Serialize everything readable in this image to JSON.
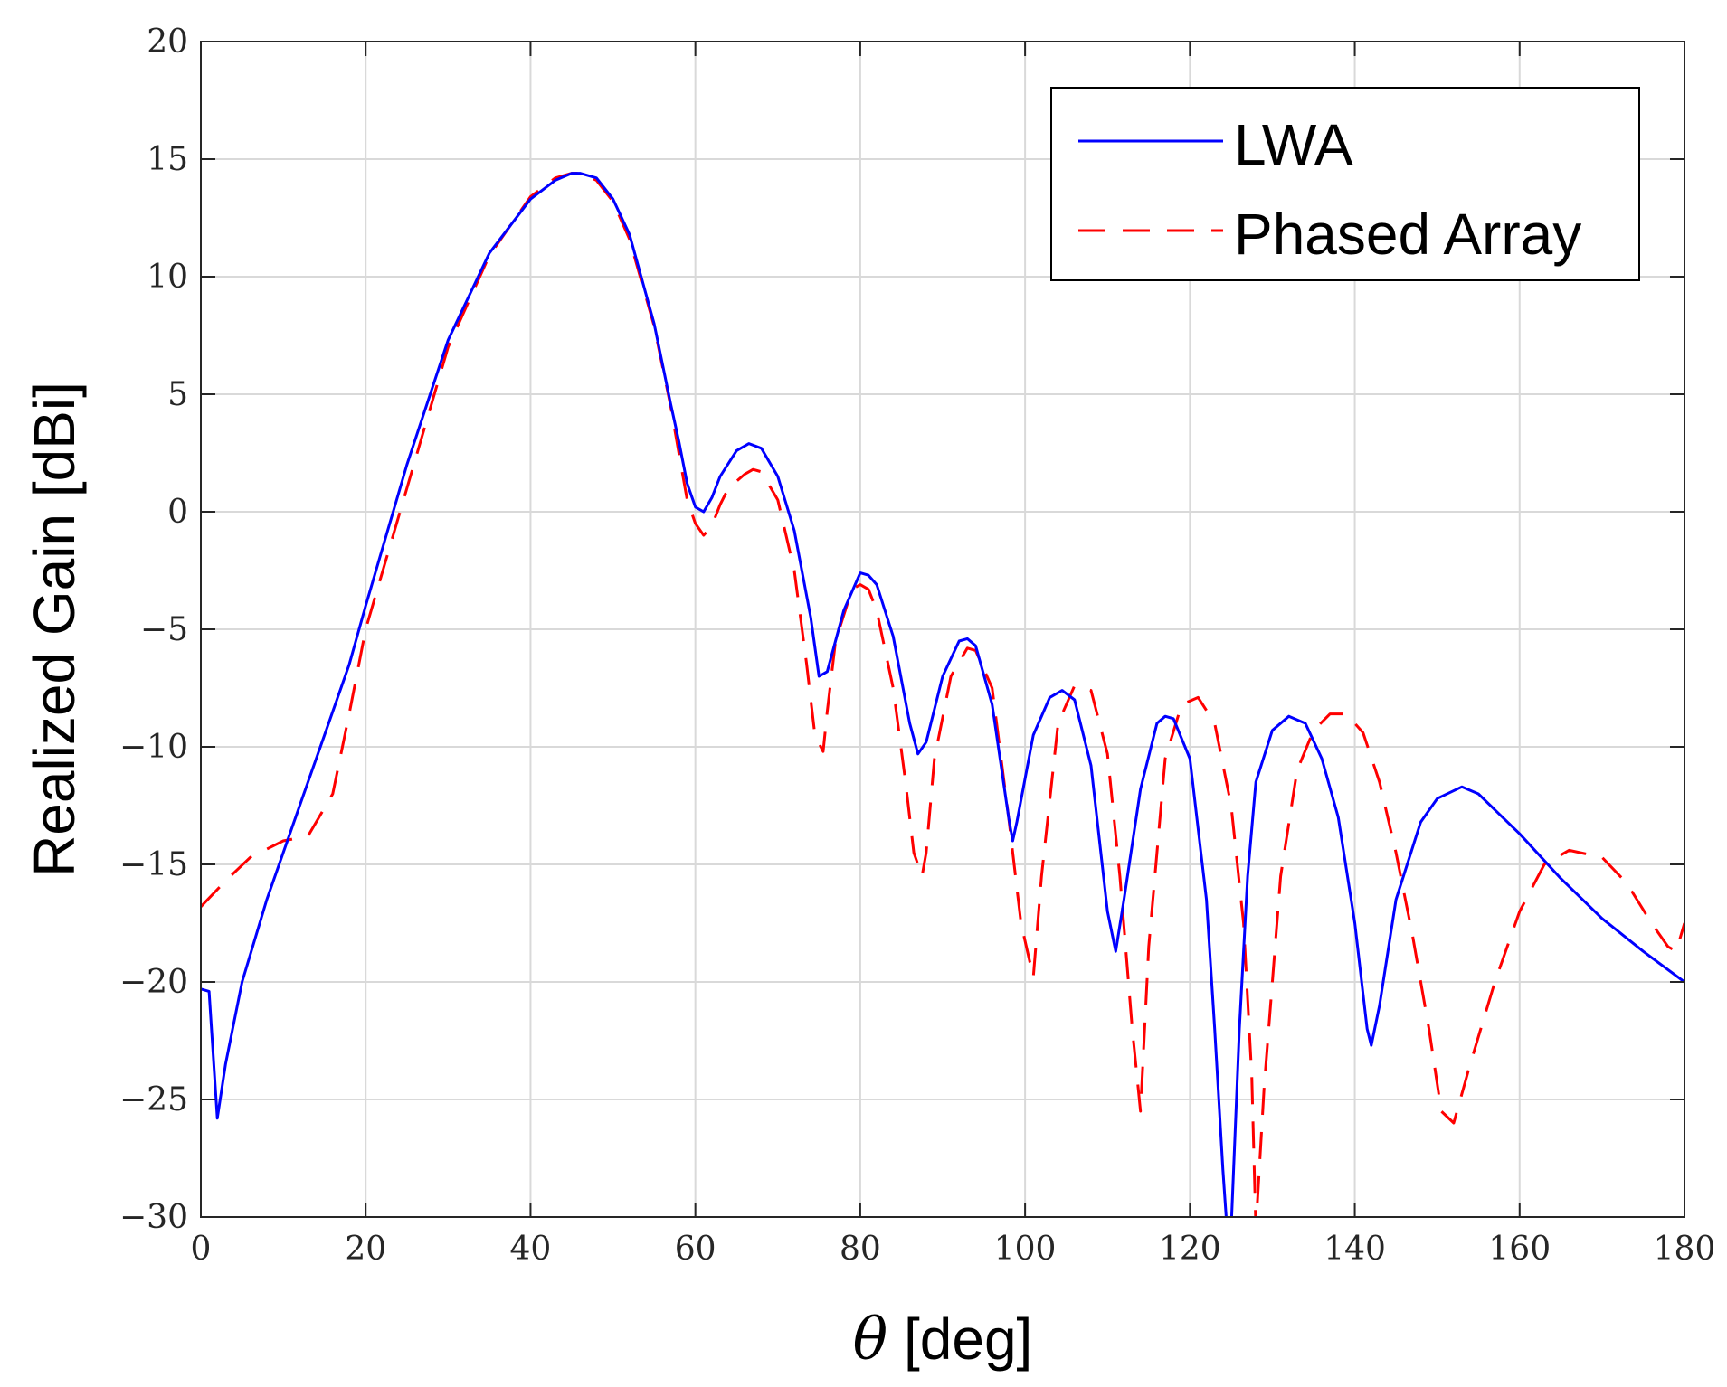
{
  "chart_data": {
    "type": "line",
    "title": "",
    "xlabel_symbol": "θ",
    "xlabel_unit": " [deg]",
    "ylabel": "Realized Gain [dBi]",
    "xlim": [
      0,
      180
    ],
    "ylim": [
      -30,
      20
    ],
    "xticks": [
      0,
      20,
      40,
      60,
      80,
      100,
      120,
      140,
      160,
      180
    ],
    "yticks": [
      -30,
      -25,
      -20,
      -15,
      -10,
      -5,
      0,
      5,
      10,
      15,
      20
    ],
    "xtick_labels": [
      "0",
      "20",
      "40",
      "60",
      "80",
      "100",
      "120",
      "140",
      "160",
      "180"
    ],
    "ytick_labels": [
      "−30",
      "−25",
      "−20",
      "−15",
      "−10",
      "−5",
      "0",
      "5",
      "10",
      "15",
      "20"
    ],
    "grid": true,
    "legend_position": "top-right",
    "series": [
      {
        "name": "LWA",
        "color": "#0000ff",
        "style": "solid",
        "x": [
          0,
          1,
          2,
          3,
          5,
          8,
          10,
          12,
          15,
          18,
          20,
          25,
          30,
          35,
          40,
          43,
          45,
          46,
          48,
          50,
          52,
          55,
          57,
          58,
          59,
          60,
          61,
          62,
          63,
          65,
          66.5,
          68,
          70,
          72,
          74,
          75,
          76,
          78,
          80,
          81,
          82,
          84,
          86,
          87,
          88,
          90,
          92,
          93,
          94,
          96,
          98,
          98.5,
          99,
          101,
          103,
          104.5,
          106,
          108,
          110,
          111,
          112,
          114,
          116,
          117,
          118,
          120,
          122,
          123,
          124,
          124.5,
          125,
          126,
          127,
          128,
          130,
          132,
          134,
          136,
          138,
          140,
          141.5,
          142,
          143,
          145,
          148,
          150,
          153,
          155,
          160,
          165,
          170,
          175,
          180
        ],
        "values": [
          -20.3,
          -20.4,
          -25.8,
          -23.5,
          -20.0,
          -16.5,
          -14.5,
          -12.5,
          -9.5,
          -6.5,
          -4.0,
          2.0,
          7.3,
          11.0,
          13.3,
          14.1,
          14.4,
          14.4,
          14.2,
          13.3,
          11.8,
          8.0,
          4.6,
          3.0,
          1.2,
          0.2,
          0.0,
          0.6,
          1.5,
          2.6,
          2.9,
          2.7,
          1.5,
          -0.8,
          -4.5,
          -7.0,
          -6.8,
          -4.2,
          -2.6,
          -2.7,
          -3.1,
          -5.3,
          -9.0,
          -10.3,
          -9.8,
          -7.0,
          -5.5,
          -5.4,
          -5.7,
          -8.2,
          -13.0,
          -14.0,
          -13.2,
          -9.5,
          -7.9,
          -7.6,
          -8.0,
          -10.8,
          -17.0,
          -18.7,
          -16.5,
          -11.8,
          -9.0,
          -8.7,
          -8.8,
          -10.5,
          -16.5,
          -22.0,
          -28.0,
          -30.5,
          -30.5,
          -22.0,
          -15.5,
          -11.5,
          -9.3,
          -8.7,
          -9.0,
          -10.5,
          -13.0,
          -17.5,
          -22.0,
          -22.7,
          -21.0,
          -16.5,
          -13.2,
          -12.2,
          -11.7,
          -12.0,
          -13.7,
          -15.6,
          -17.3,
          -18.7,
          -20.0
        ]
      },
      {
        "name": "Phased Array",
        "color": "#ff0000",
        "style": "dashed",
        "x": [
          0,
          3,
          6,
          10,
          13,
          16,
          18,
          20,
          25,
          30,
          35,
          40,
          43,
          45,
          46,
          48,
          50,
          52,
          55,
          57,
          58,
          59,
          60,
          61,
          62,
          63,
          64,
          66,
          67,
          68,
          70,
          72,
          73.5,
          74.5,
          75.5,
          76,
          77,
          79,
          80,
          81,
          82,
          84,
          85.5,
          86.5,
          87.5,
          88,
          89,
          91,
          93,
          94,
          96,
          98,
          99.5,
          101,
          102,
          104,
          106,
          108,
          110,
          111.5,
          113,
          114,
          115,
          117,
          119,
          121,
          123,
          125,
          126.5,
          127.5,
          128,
          129,
          131,
          133,
          135,
          137,
          139,
          141,
          143,
          145,
          147,
          149,
          150.5,
          152,
          154,
          157,
          160,
          163,
          166,
          170,
          173,
          176,
          178,
          179,
          180
        ],
        "values": [
          -16.8,
          -15.7,
          -14.7,
          -14.0,
          -13.8,
          -12.0,
          -8.6,
          -5.0,
          1.0,
          7.0,
          10.9,
          13.4,
          14.2,
          14.4,
          14.4,
          14.1,
          13.2,
          11.6,
          7.9,
          4.5,
          2.5,
          0.5,
          -0.5,
          -1.0,
          -0.6,
          0.3,
          1.0,
          1.6,
          1.8,
          1.7,
          0.5,
          -2.5,
          -6.5,
          -9.5,
          -10.2,
          -8.5,
          -5.5,
          -3.3,
          -3.1,
          -3.3,
          -4.2,
          -7.5,
          -11.5,
          -14.5,
          -15.5,
          -14.5,
          -10.5,
          -7.0,
          -5.8,
          -5.9,
          -7.5,
          -13.0,
          -17.5,
          -19.8,
          -15.5,
          -9.0,
          -7.4,
          -7.6,
          -10.3,
          -15.5,
          -22.0,
          -25.5,
          -18.5,
          -10.5,
          -8.2,
          -7.9,
          -9.0,
          -12.5,
          -17.5,
          -24.0,
          -30.5,
          -24.5,
          -15.5,
          -11.0,
          -9.3,
          -8.6,
          -8.6,
          -9.4,
          -11.5,
          -14.5,
          -18.0,
          -22.0,
          -25.5,
          -26.0,
          -23.5,
          -20.0,
          -17.0,
          -15.0,
          -14.4,
          -14.7,
          -15.8,
          -17.5,
          -18.5,
          -18.7,
          -17.5
        ]
      }
    ]
  }
}
